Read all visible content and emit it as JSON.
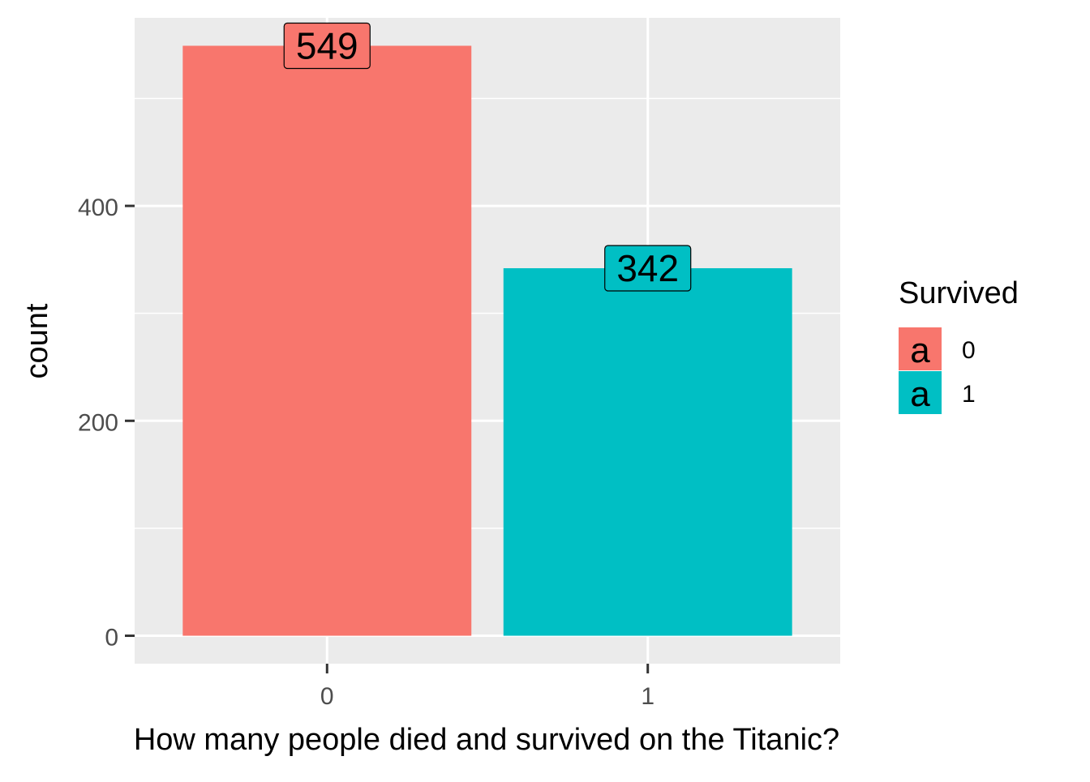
{
  "chart_data": {
    "type": "bar",
    "categories": [
      "0",
      "1"
    ],
    "values": [
      549,
      342
    ],
    "data_labels": [
      "549",
      "342"
    ],
    "colors": [
      "#F8766D",
      "#00BFC4"
    ],
    "xlabel": "How many people died and survived on the Titanic?",
    "ylabel": "count",
    "ylim": [
      -26,
      575
    ],
    "yticks": [
      0,
      200,
      400
    ],
    "ytick_labels": [
      "0",
      "200",
      "400"
    ],
    "xtick_labels": [
      "0",
      "1"
    ],
    "grid": true,
    "legend": {
      "title": "Survived",
      "position": "right",
      "key_glyph": "a",
      "entries": [
        {
          "label": "0",
          "color": "#F8766D"
        },
        {
          "label": "1",
          "color": "#00BFC4"
        }
      ]
    }
  }
}
